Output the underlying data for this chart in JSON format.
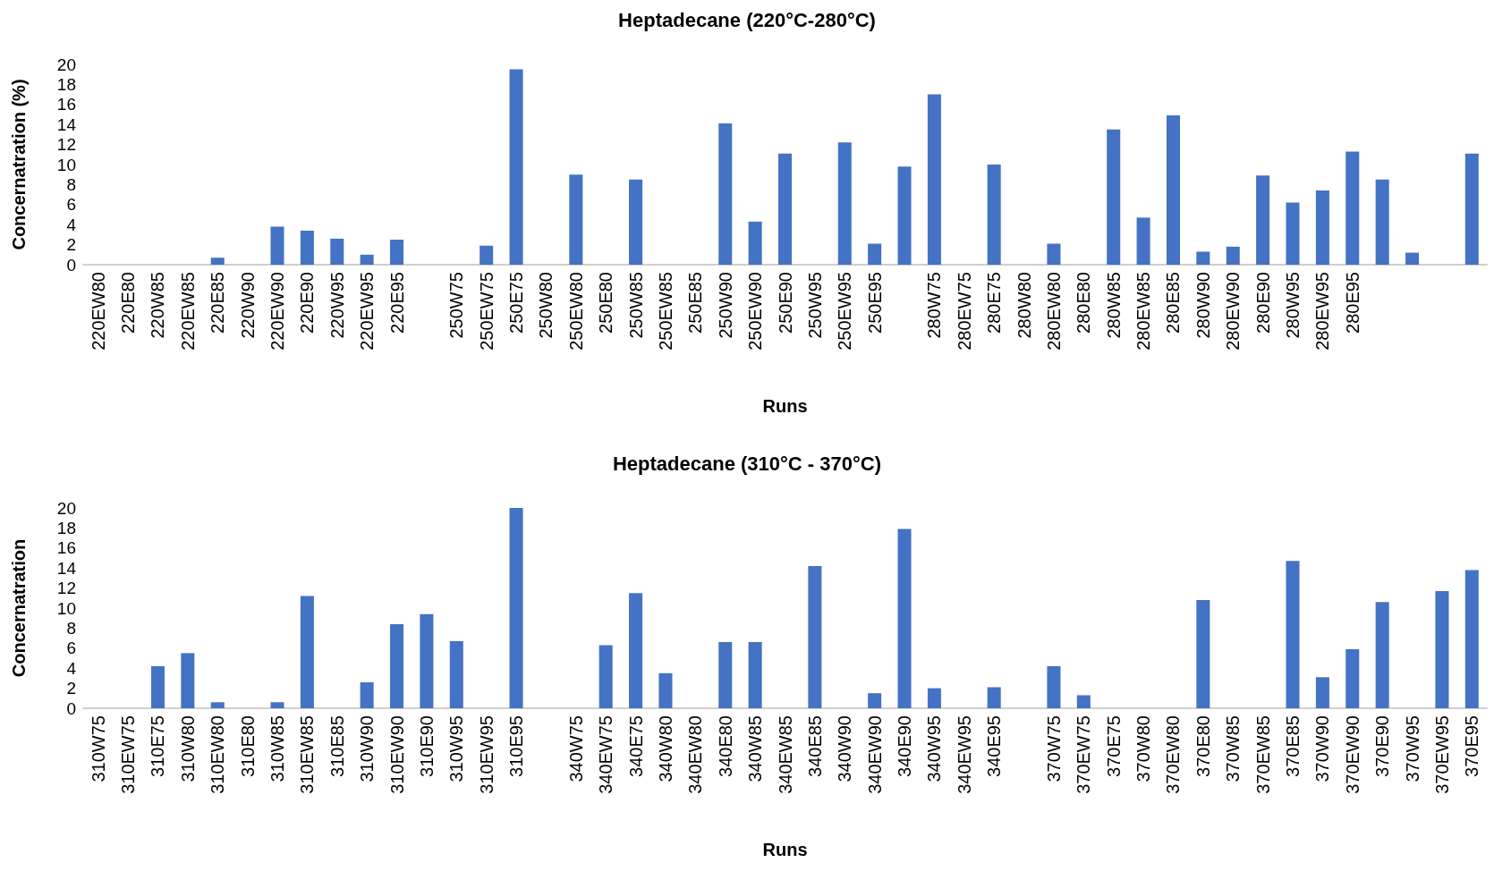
{
  "chart_data": [
    {
      "type": "bar",
      "title": "Heptadecane (220°C-280°C)",
      "xlabel": "Runs",
      "ylabel": "Concernatration (%)",
      "color": "#4472c4",
      "ylim": [
        0,
        20
      ],
      "yticks": [
        0,
        2,
        4,
        6,
        8,
        10,
        12,
        14,
        16,
        18,
        20
      ],
      "categories": [
        "220EW80",
        "220E80",
        "220W85",
        "220EW85",
        "220E85",
        "220W90",
        "220EW90",
        "220E90",
        "220W95",
        "220EW95",
        "220E95",
        null,
        "250W75",
        "250EW75",
        "250E75",
        "250W80",
        "250EW80",
        "250E80",
        "250W85",
        "250EW85",
        "250E85",
        "250W90",
        "250EW90",
        "250E90",
        "250W95",
        "250EW95",
        "250E95",
        null,
        "280W75",
        "280EW75",
        "280E75",
        "280W80",
        "280EW80",
        "280E80",
        "280W85",
        "280EW85",
        "280E85",
        "280W90",
        "280EW90",
        "280E90",
        "280W95",
        "280EW95",
        "280E95",
        null,
        null,
        null,
        null
      ],
      "values": [
        0,
        0,
        0,
        0,
        0.7,
        0,
        3.8,
        3.4,
        2.6,
        1.0,
        2.5,
        0,
        0,
        1.9,
        19.5,
        0,
        9.0,
        0,
        8.5,
        0,
        0,
        14.1,
        4.3,
        11.1,
        0,
        12.2,
        2.1,
        9.8,
        17.0,
        0,
        10.0,
        0,
        2.1,
        0,
        13.5,
        4.7,
        14.9,
        1.3,
        1.8,
        8.9,
        6.2,
        7.4,
        11.3,
        8.5,
        1.2,
        0,
        11.1
      ]
    },
    {
      "type": "bar",
      "title": "Heptadecane (310°C - 370°C)",
      "xlabel": "Runs",
      "ylabel": "Concernatration",
      "color": "#4472c4",
      "ylim": [
        0,
        20
      ],
      "yticks": [
        0,
        2,
        4,
        6,
        8,
        10,
        12,
        14,
        16,
        18,
        20
      ],
      "categories": [
        "310W75",
        "310EW75",
        "310E75",
        "310W80",
        "310EW80",
        "310E80",
        "310W85",
        "310EW85",
        "310E85",
        "310W90",
        "310EW90",
        "310E90",
        "310W95",
        "310EW95",
        "310E95",
        null,
        "340W75",
        "340EW75",
        "340E75",
        "340W80",
        "340EW80",
        "340E80",
        "340W85",
        "340EW85",
        "340E85",
        "340W90",
        "340EW90",
        "340E90",
        "340W95",
        "340EW95",
        "340E95",
        null,
        "370W75",
        "370EW75",
        "370E75",
        "370W80",
        "370EW80",
        "370E80",
        "370W85",
        "370EW85",
        "370E85",
        "370W90",
        "370EW90",
        "370E90",
        "370W95",
        "370EW95",
        "370E95"
      ],
      "values": [
        0,
        0,
        4.2,
        5.5,
        0.6,
        0,
        0.6,
        11.2,
        0,
        2.6,
        8.4,
        9.4,
        6.7,
        0,
        20.0,
        0,
        0,
        6.3,
        11.5,
        3.5,
        0,
        6.6,
        6.6,
        0,
        14.2,
        0,
        1.5,
        17.9,
        2.0,
        0,
        2.1,
        0,
        4.2,
        1.3,
        0,
        0,
        0,
        10.8,
        0,
        0,
        14.7,
        3.1,
        5.9,
        10.6,
        0,
        11.7,
        13.8
      ]
    }
  ]
}
